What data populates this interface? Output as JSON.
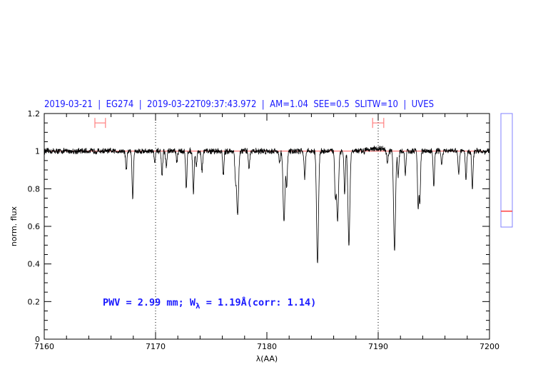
{
  "chart_data": {
    "type": "line",
    "title": "2019-03-21  |  EG274  |  2019-03-22T09:37:43.972  |  AM=1.04  SEE=0.5  SLITW=10  |  UVES",
    "xlabel": "λ(AA)",
    "ylabel": "norm. flux",
    "xlim": [
      7160,
      7200
    ],
    "ylim": [
      0,
      1.2
    ],
    "xticks": [
      7160,
      7170,
      7180,
      7190,
      7200
    ],
    "x_minor_step": 2,
    "yticks": [
      "0",
      "0.2",
      "0.4",
      "0.6",
      "0.8",
      "1",
      "1.2"
    ],
    "y_minor_step": 0.05,
    "grid": false,
    "reference_line": {
      "y": 1.0,
      "color": "#ff4040"
    },
    "dotted_vlines": [
      7170,
      7190
    ],
    "error_bars": [
      {
        "x_from": 7164.55,
        "x_to": 7165.5,
        "y": 1.15,
        "color": "#ff8080"
      },
      {
        "x_from": 7189.5,
        "x_to": 7190.5,
        "y": 1.15,
        "color": "#ff8080"
      }
    ],
    "continuum": 1.0,
    "absorption_lines": [
      {
        "wavelength": 7167.37,
        "min_flux": 0.9
      },
      {
        "wavelength": 7167.95,
        "min_flux": 0.75
      },
      {
        "wavelength": 7169.94,
        "min_flux": 0.94
      },
      {
        "wavelength": 7170.58,
        "min_flux": 0.87
      },
      {
        "wavelength": 7170.96,
        "min_flux": 0.92
      },
      {
        "wavelength": 7171.92,
        "min_flux": 0.94
      },
      {
        "wavelength": 7172.76,
        "min_flux": 0.8
      },
      {
        "wavelength": 7173.4,
        "min_flux": 0.78
      },
      {
        "wavelength": 7173.66,
        "min_flux": 0.92
      },
      {
        "wavelength": 7174.17,
        "min_flux": 0.89
      },
      {
        "wavelength": 7176.09,
        "min_flux": 0.87
      },
      {
        "wavelength": 7177.18,
        "min_flux": 0.85
      },
      {
        "wavelength": 7177.37,
        "min_flux": 0.66
      },
      {
        "wavelength": 7178.4,
        "min_flux": 0.91
      },
      {
        "wavelength": 7181.15,
        "min_flux": 0.94
      },
      {
        "wavelength": 7181.54,
        "min_flux": 0.62
      },
      {
        "wavelength": 7181.78,
        "min_flux": 0.81
      },
      {
        "wavelength": 7183.4,
        "min_flux": 0.86
      },
      {
        "wavelength": 7184.55,
        "min_flux": 0.4
      },
      {
        "wavelength": 7186.15,
        "min_flux": 0.76
      },
      {
        "wavelength": 7186.35,
        "min_flux": 0.63
      },
      {
        "wavelength": 7186.99,
        "min_flux": 0.77
      },
      {
        "wavelength": 7187.37,
        "min_flux": 0.5
      },
      {
        "wavelength": 7190.83,
        "min_flux": 0.93
      },
      {
        "wavelength": 7191.47,
        "min_flux": 0.47
      },
      {
        "wavelength": 7191.8,
        "min_flux": 0.87
      },
      {
        "wavelength": 7192.44,
        "min_flux": 0.88
      },
      {
        "wavelength": 7193.59,
        "min_flux": 0.7
      },
      {
        "wavelength": 7193.74,
        "min_flux": 0.73
      },
      {
        "wavelength": 7195.0,
        "min_flux": 0.81
      },
      {
        "wavelength": 7195.71,
        "min_flux": 0.93
      },
      {
        "wavelength": 7197.24,
        "min_flux": 0.88
      },
      {
        "wavelength": 7197.89,
        "min_flux": 0.855
      },
      {
        "wavelength": 7198.46,
        "min_flux": 0.8
      }
    ],
    "annotation": {
      "pwv_text": "PWV = 2.99 mm; W",
      "subscript": "λ",
      "ew_text": " = 1.19Å(corr: 1.14)"
    },
    "side_indicator": {
      "level": 0.14,
      "frame_color": "#8080ff",
      "marker_color": "#ff4040"
    },
    "colors": {
      "title": "#1a1aff",
      "spectrum": "#000000",
      "reference": "#ff4040"
    }
  }
}
